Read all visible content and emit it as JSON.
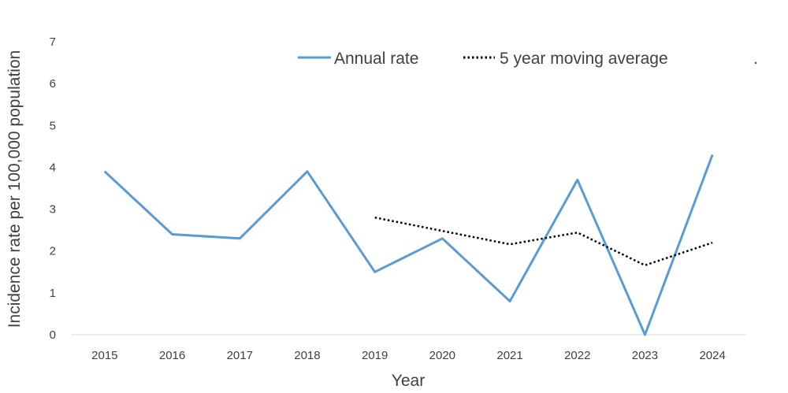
{
  "chart_data": {
    "type": "line",
    "xlabel": "Year",
    "ylabel": "Incidence rate per 100,000 population",
    "categories": [
      "2015",
      "2016",
      "2017",
      "2018",
      "2019",
      "2020",
      "2021",
      "2022",
      "2023",
      "2024"
    ],
    "yticks": [
      "0",
      "1",
      "2",
      "3",
      "4",
      "5",
      "6",
      "7"
    ],
    "ylim": [
      0,
      7
    ],
    "grid": false,
    "legend_position": "top",
    "legend_trailing_mark": ".",
    "series": [
      {
        "name": "Annual rate",
        "style": "solid",
        "color": "#5b9bd5",
        "values": [
          3.9,
          2.4,
          2.3,
          3.9,
          1.5,
          2.3,
          0.8,
          3.7,
          0.0,
          4.3
        ]
      },
      {
        "name": "5 year moving average",
        "style": "dotted",
        "color": "#000000",
        "values": [
          null,
          null,
          null,
          null,
          2.8,
          2.48,
          2.16,
          2.44,
          1.66,
          2.2
        ]
      }
    ]
  }
}
